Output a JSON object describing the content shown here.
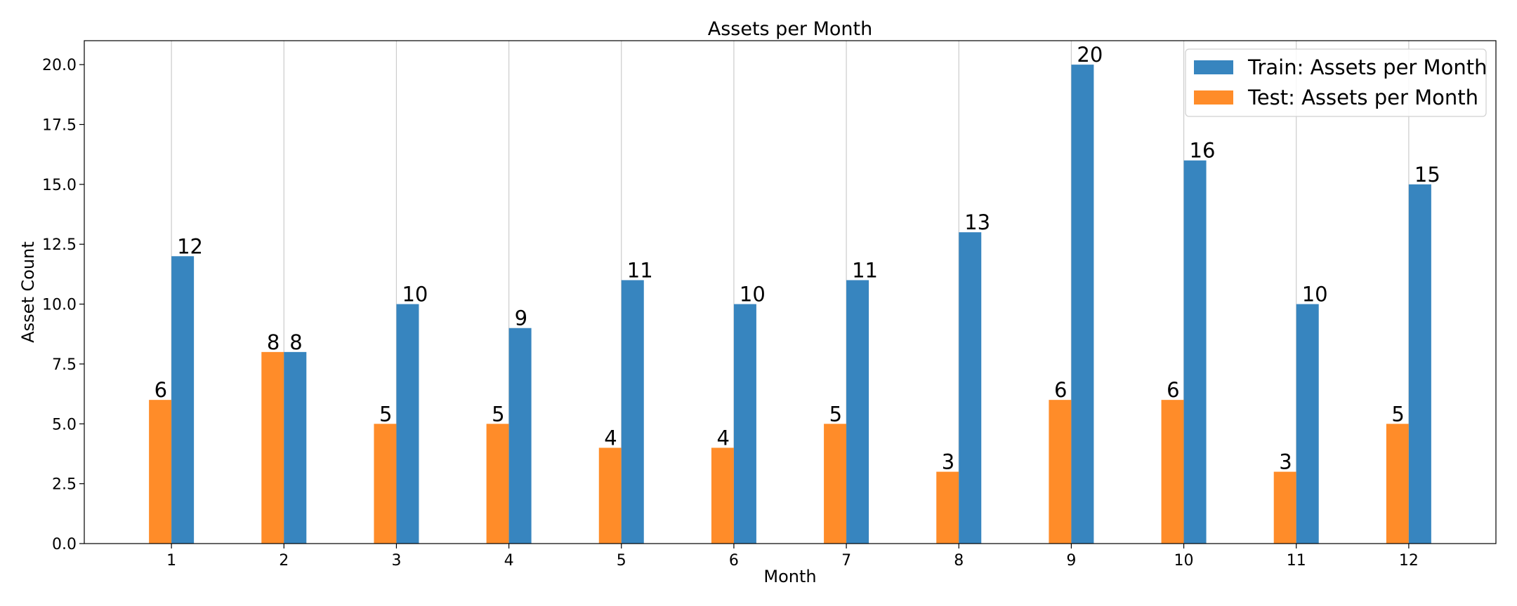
{
  "chart_data": {
    "type": "bar",
    "title": "Assets per Month",
    "xlabel": "Month",
    "ylabel": "Asset Count",
    "categories": [
      "1",
      "2",
      "3",
      "4",
      "5",
      "6",
      "7",
      "8",
      "9",
      "10",
      "11",
      "12"
    ],
    "series": [
      {
        "name": "Test: Assets per Month",
        "color": "#ff8c29",
        "values": [
          6,
          8,
          5,
          5,
          4,
          4,
          5,
          3,
          6,
          6,
          3,
          5
        ]
      },
      {
        "name": "Train: Assets per Month",
        "color": "#3785bf",
        "values": [
          12,
          8,
          10,
          9,
          11,
          10,
          11,
          13,
          20,
          16,
          10,
          15
        ]
      }
    ],
    "legend_order": [
      1,
      0
    ],
    "ylim": [
      0,
      21
    ],
    "yticks": [
      0.0,
      2.5,
      5.0,
      7.5,
      10.0,
      12.5,
      15.0,
      17.5,
      20.0
    ],
    "ytick_labels": [
      "0.0",
      "2.5",
      "5.0",
      "7.5",
      "10.0",
      "12.5",
      "15.0",
      "17.5",
      "20.0"
    ],
    "grid": "vertical",
    "legend_position": "top-right"
  }
}
